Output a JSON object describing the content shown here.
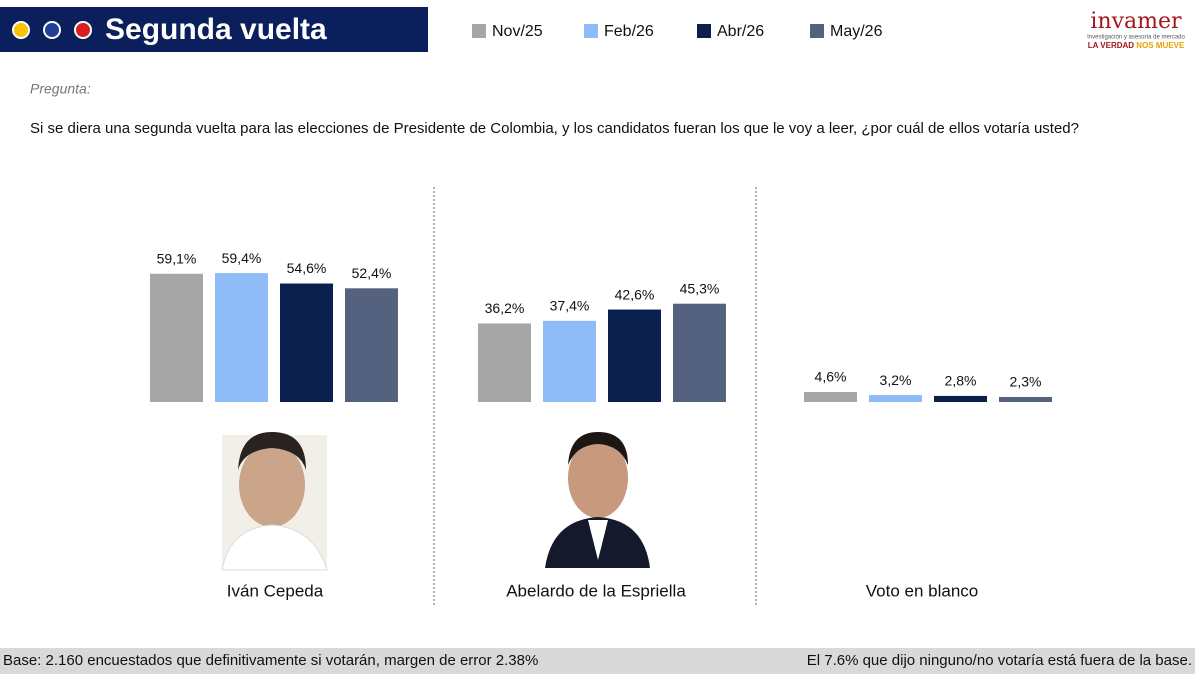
{
  "chart_data": {
    "type": "bar",
    "title": "Segunda vuelta",
    "question_label": "Pregunta:",
    "question": "Si se diera una segunda vuelta para las elecciones de Presidente de Colombia, y los candidatos fueran los que le voy a leer, ¿por cuál de ellos votaría usted?",
    "categories": [
      "Iván Cepeda",
      "Abelardo de la Espriella",
      "Voto en blanco"
    ],
    "series": [
      {
        "name": "Nov/25",
        "color": "#a6a6a6",
        "values": [
          59.1,
          36.2,
          4.6
        ],
        "value_labels": [
          "59,1%",
          "36,2%",
          "4,6%"
        ]
      },
      {
        "name": "Feb/26",
        "color": "#8fbcf7",
        "values": [
          59.4,
          37.4,
          3.2
        ],
        "value_labels": [
          "59,4%",
          "37,4%",
          "3,2%"
        ]
      },
      {
        "name": "Abr/26",
        "color": "#0b1f4d",
        "values": [
          54.6,
          42.6,
          2.8
        ],
        "value_labels": [
          "54,6%",
          "42,6%",
          "2,8%"
        ]
      },
      {
        "name": "May/26",
        "color": "#54627f",
        "values": [
          52.4,
          45.3,
          2.3
        ],
        "value_labels": [
          "52,4%",
          "45,3%",
          "2,3%"
        ]
      }
    ],
    "footnote_left": "Base: 2.160 encuestados que definitivamente si votarán, margen de error 2.38%",
    "footnote_right": "El 7.6% que dijo ninguno/no votaría está fuera de la base.",
    "brand": {
      "name": "invamer",
      "tagline": "Investigación y asesoría de mercado",
      "motto_a": "LA VERDAD",
      "motto_b": "NOS MUEVE"
    }
  }
}
